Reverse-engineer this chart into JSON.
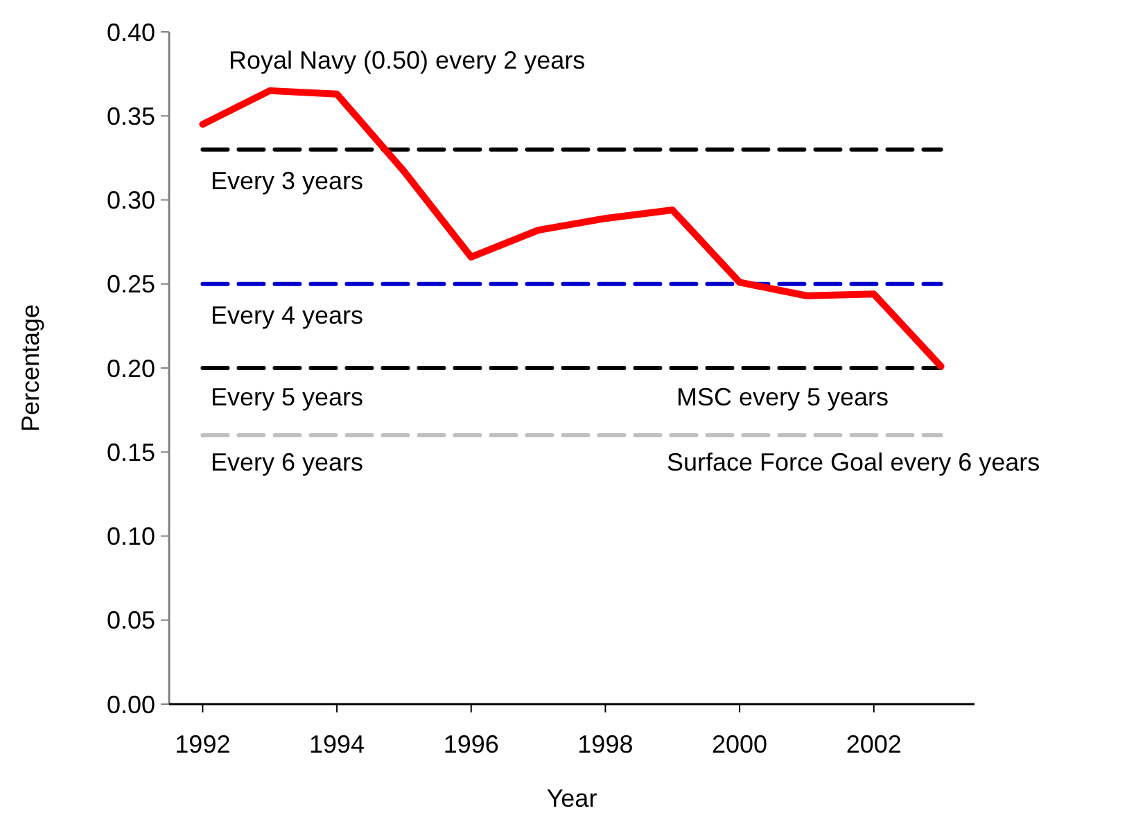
{
  "chart_data": {
    "type": "line",
    "xlabel": "Year",
    "ylabel": "Percentage",
    "xlim": [
      1991.5,
      2003.5
    ],
    "xticks": [
      1992,
      1994,
      1996,
      1998,
      2000,
      2002
    ],
    "ylim": [
      0,
      0.4
    ],
    "yticks": [
      {
        "value": 0,
        "label": "0.00"
      },
      {
        "value": 0.05,
        "label": "0.05"
      },
      {
        "value": 0.1,
        "label": "0.10"
      },
      {
        "value": 0.15,
        "label": "0.15"
      },
      {
        "value": 0.2,
        "label": "0.20"
      },
      {
        "value": 0.25,
        "label": "0.25"
      },
      {
        "value": 0.3,
        "label": "0.30"
      },
      {
        "value": 0.35,
        "label": "0.35"
      },
      {
        "value": 0.4,
        "label": "0.40"
      }
    ],
    "grid": false,
    "series": [
      {
        "color": "#ff0000",
        "x": [
          1992,
          1993,
          1994,
          1995,
          1996,
          1997,
          1998,
          1999,
          2000,
          2001,
          2002,
          2003
        ],
        "values": [
          0.345,
          0.365,
          0.363,
          0.317,
          0.266,
          0.282,
          0.289,
          0.294,
          0.251,
          0.243,
          0.244,
          0.201
        ],
        "line_style": "solid"
      },
      {
        "color": "#000000",
        "x": [
          1992,
          2003
        ],
        "values": [
          0.33,
          0.33
        ],
        "line_style": "dashed"
      },
      {
        "color": "#0000cc",
        "x": [
          1992,
          2003
        ],
        "values": [
          0.25,
          0.25
        ],
        "line_style": "dashed"
      },
      {
        "color": "#000000",
        "x": [
          1992,
          2003
        ],
        "values": [
          0.2,
          0.2
        ],
        "line_style": "dashed"
      },
      {
        "color": "#c0c0c0",
        "x": [
          1992,
          2003
        ],
        "values": [
          0.16,
          0.16
        ],
        "line_style": "dashed"
      }
    ],
    "annotations": [
      "Royal Navy (0.50) every 2 years",
      "Every 3 years",
      "Every 4 years",
      "Every 5 years",
      "MSC every 5 years",
      "Every 6 years",
      "Surface Force Goal every 6 years"
    ]
  }
}
